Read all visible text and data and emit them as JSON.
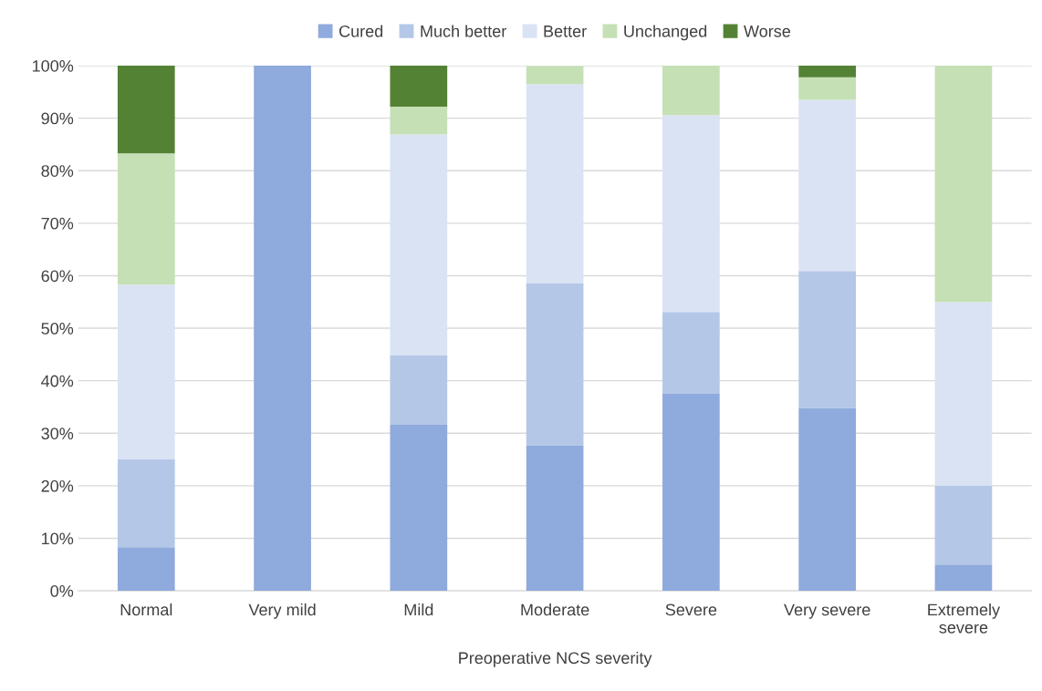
{
  "chart_data": {
    "type": "bar",
    "stacked": true,
    "xlabel": "Preoperative NCS severity",
    "categories": [
      "Normal",
      "Very mild",
      "Mild",
      "Moderate",
      "Severe",
      "Very severe",
      "Extremely\nsevere"
    ],
    "series": [
      {
        "name": "Cured",
        "color": "#8faadc",
        "values": [
          8.3,
          100,
          31.6,
          27.6,
          37.5,
          34.8,
          5
        ]
      },
      {
        "name": "Much better",
        "color": "#b4c7e7",
        "values": [
          16.7,
          0,
          13.2,
          31.0,
          15.6,
          26.1,
          15
        ]
      },
      {
        "name": "Better",
        "color": "#dae3f3",
        "values": [
          33.3,
          0,
          42.1,
          37.9,
          37.5,
          32.6,
          35
        ]
      },
      {
        "name": "Unchanged",
        "color": "#c5e0b4",
        "values": [
          25,
          0,
          5.3,
          3.4,
          9.4,
          4.3,
          45
        ]
      },
      {
        "name": "Worse",
        "color": "#548235",
        "values": [
          16.7,
          0,
          7.9,
          0,
          0,
          2.2,
          0
        ]
      }
    ],
    "ylim": [
      0,
      100
    ],
    "yticks": [
      {
        "value": 0,
        "label": "0%"
      },
      {
        "value": 10,
        "label": "10%"
      },
      {
        "value": 20,
        "label": "20%"
      },
      {
        "value": 30,
        "label": "30%"
      },
      {
        "value": 40,
        "label": "40%"
      },
      {
        "value": 50,
        "label": "50%"
      },
      {
        "value": 60,
        "label": "60%"
      },
      {
        "value": 70,
        "label": "70%"
      },
      {
        "value": 80,
        "label": "80%"
      },
      {
        "value": 90,
        "label": "90%"
      },
      {
        "value": 100,
        "label": "100%"
      }
    ],
    "grid": "y",
    "legend": "top"
  }
}
